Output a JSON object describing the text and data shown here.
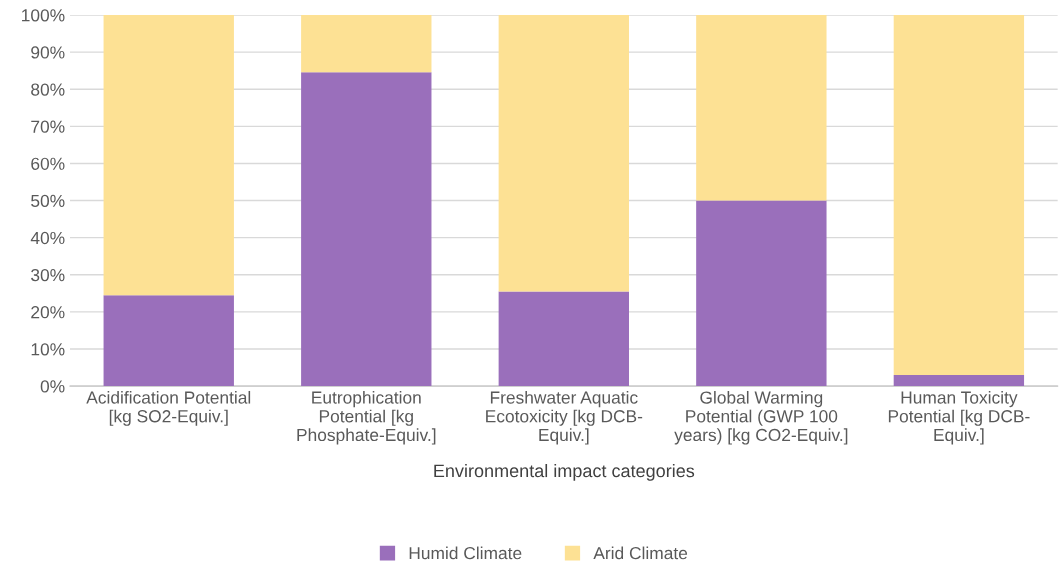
{
  "chart_data": {
    "type": "bar",
    "stacked": true,
    "xlabel": "Environmental impact categories",
    "categories": [
      "Acidification Potential\n[kg SO2-Equiv.]",
      "Eutrophication\nPotential [kg\nPhosphate-Equiv.]",
      "Freshwater Aquatic\nEcotoxicity [kg DCB-\nEquiv.]",
      "Global Warming\nPotential (GWP 100\nyears) [kg CO2-Equiv.]",
      "Human Toxicity\nPotential [kg DCB-\nEquiv.]"
    ],
    "series": [
      {
        "name": "Humid Climate",
        "color": "#9a6fbb",
        "values": [
          24.5,
          84.6,
          25.5,
          50.0,
          3.0
        ]
      },
      {
        "name": "Arid Climate",
        "color": "#fde194",
        "values": [
          75.5,
          15.4,
          74.5,
          50.0,
          97.0
        ]
      }
    ],
    "ylim": [
      0,
      100
    ],
    "yticks": [
      {
        "value": 0,
        "label": "0%"
      },
      {
        "value": 10,
        "label": "10%"
      },
      {
        "value": 20,
        "label": "20%"
      },
      {
        "value": 30,
        "label": "30%"
      },
      {
        "value": 40,
        "label": "40%"
      },
      {
        "value": 50,
        "label": "50%"
      },
      {
        "value": 60,
        "label": "60%"
      },
      {
        "value": 70,
        "label": "70%"
      },
      {
        "value": 80,
        "label": "80%"
      },
      {
        "value": 90,
        "label": "90%"
      },
      {
        "value": 100,
        "label": "100%"
      }
    ],
    "grid": "y",
    "legend": "bottom"
  }
}
